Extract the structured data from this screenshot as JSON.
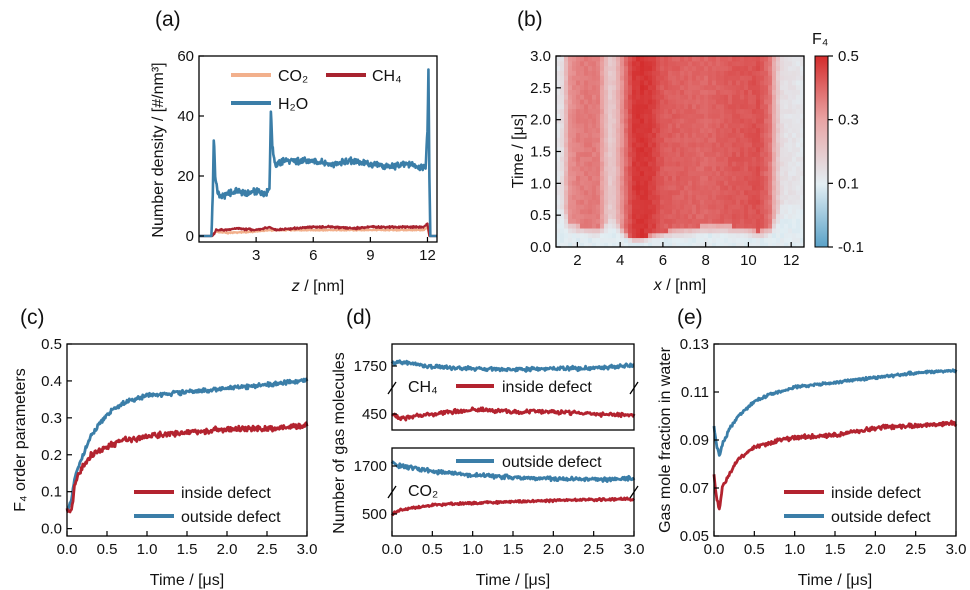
{
  "colors": {
    "h2o": "#3b7ea8",
    "ch4": "#a8232f",
    "co2": "#f2b08c",
    "inside": "#b3232f",
    "outside": "#3b7ea8"
  },
  "panels": {
    "a": {
      "label": "(a)",
      "xlabel_var": "z",
      "xlabel_unit": " / [nm]",
      "ylabel": "Number density / [#/nm³]",
      "legend": {
        "co2": "CO₂",
        "ch4": "CH₄",
        "h2o": "H₂O"
      }
    },
    "b": {
      "label": "(b)",
      "xlabel_var": "x",
      "xlabel_unit": " / [nm]",
      "ylabel": "Time / [μs]",
      "colorbar_title": "F₄"
    },
    "c": {
      "label": "(c)",
      "xlabel": "Time / [μs]",
      "ylabel": "F₄ order parameters",
      "legend": {
        "inside": "inside defect",
        "outside": "outside defect"
      }
    },
    "d": {
      "label": "(d)",
      "xlabel": "Time / [μs]",
      "ylabel": "Number of gas molecules",
      "top_gas": "CH₄",
      "bottom_gas": "CO₂",
      "legend": {
        "inside": "inside defect",
        "outside": "outside defect"
      }
    },
    "e": {
      "label": "(e)",
      "xlabel": "Time / [μs]",
      "ylabel": "Gas mole fraction in water",
      "legend": {
        "inside": "inside defect",
        "outside": "outside defect"
      }
    }
  },
  "chart_data": [
    {
      "panel": "a",
      "type": "line",
      "xticks": [
        "3",
        "6",
        "9",
        "12"
      ],
      "yticks": [
        "0",
        "20",
        "40",
        "60"
      ],
      "xlim": [
        0,
        12.5
      ],
      "ylim": [
        -2,
        60
      ],
      "series": [
        {
          "name": "H₂O",
          "x": [
            0,
            0.65,
            0.72,
            0.78,
            0.85,
            1.0,
            1.2,
            1.5,
            2.0,
            2.5,
            3.0,
            3.5,
            3.7,
            3.78,
            3.85,
            4.0,
            4.5,
            5,
            6,
            7,
            8,
            9,
            10,
            11,
            11.6,
            11.9,
            12.0,
            12.05,
            12.1,
            12.15,
            12.5
          ],
          "y": [
            0,
            0,
            12,
            34,
            20,
            14,
            13,
            14,
            15,
            14,
            15,
            14,
            16,
            42,
            30,
            24,
            25,
            25,
            25,
            24,
            25,
            24,
            23,
            24,
            23,
            23,
            35,
            55,
            20,
            0,
            0
          ]
        },
        {
          "name": "CH₄",
          "x": [
            0,
            0.7,
            0.9,
            1.5,
            2,
            3,
            3.7,
            4,
            5,
            6,
            7,
            8,
            9,
            10,
            11,
            11.8,
            12.0,
            12.1,
            12.5
          ],
          "y": [
            0,
            0,
            2,
            2,
            2.5,
            2,
            3,
            2,
            2.5,
            3,
            3,
            2.5,
            3,
            3,
            3,
            3,
            4,
            0,
            0
          ]
        },
        {
          "name": "CO₂",
          "x": [
            0,
            0.7,
            0.9,
            1.5,
            3,
            4,
            6,
            8,
            10,
            11.8,
            12.0,
            12.1,
            12.5
          ],
          "y": [
            0,
            0,
            1.5,
            1,
            1.5,
            2,
            2,
            2,
            2,
            2,
            3,
            0,
            0
          ]
        }
      ]
    },
    {
      "panel": "b",
      "type": "heatmap",
      "xticks": [
        "2",
        "4",
        "6",
        "8",
        "10",
        "12"
      ],
      "yticks": [
        "0.0",
        "0.5",
        "1.0",
        "1.5",
        "2.0",
        "2.5",
        "3.0"
      ],
      "xlim": [
        1,
        12.6
      ],
      "ylim": [
        0,
        3.0
      ],
      "colorbar_ticks": [
        "0.5",
        "0.3",
        "0.1",
        "-0.1"
      ],
      "zlim": [
        -0.1,
        0.5
      ],
      "profile_x": [
        1,
        1.3,
        1.6,
        2,
        2.5,
        3,
        3.3,
        3.6,
        4,
        4.3,
        4.6,
        5,
        5.5,
        6,
        7,
        8,
        9,
        10,
        10.5,
        11,
        11.3,
        11.6,
        12.6
      ],
      "profile_f4": [
        0.12,
        0.15,
        0.32,
        0.36,
        0.37,
        0.36,
        0.25,
        0.18,
        0.3,
        0.4,
        0.47,
        0.49,
        0.47,
        0.42,
        0.41,
        0.4,
        0.42,
        0.43,
        0.44,
        0.38,
        0.22,
        0.14,
        0.12
      ],
      "onset_time": [
        0.7,
        0.6,
        0.4,
        0.35,
        0.3,
        0.3,
        0.35,
        0.5,
        0.3,
        0.2,
        0.15,
        0.15,
        0.2,
        0.25,
        0.3,
        0.35,
        0.35,
        0.3,
        0.25,
        0.3,
        0.5,
        0.7,
        0.7
      ]
    },
    {
      "panel": "c",
      "type": "line",
      "xticks": [
        "0.0",
        "0.5",
        "1.0",
        "1.5",
        "2.0",
        "2.5",
        "3.0"
      ],
      "yticks": [
        "0.0",
        "0.1",
        "0.2",
        "0.3",
        "0.4",
        "0.5"
      ],
      "xlim": [
        0,
        3.0
      ],
      "ylim": [
        -0.02,
        0.5
      ],
      "series": [
        {
          "name": "inside defect",
          "x": [
            0,
            0.05,
            0.1,
            0.2,
            0.3,
            0.5,
            0.7,
            1.0,
            1.5,
            2.0,
            2.5,
            3.0
          ],
          "y": [
            0.05,
            0.04,
            0.12,
            0.17,
            0.2,
            0.22,
            0.24,
            0.25,
            0.26,
            0.27,
            0.27,
            0.28
          ]
        },
        {
          "name": "outside defect",
          "x": [
            0,
            0.05,
            0.1,
            0.2,
            0.3,
            0.5,
            0.7,
            1.0,
            1.5,
            2.0,
            2.5,
            3.0
          ],
          "y": [
            0.05,
            0.07,
            0.14,
            0.2,
            0.25,
            0.31,
            0.34,
            0.36,
            0.37,
            0.38,
            0.39,
            0.4
          ]
        }
      ]
    },
    {
      "panel": "d",
      "type": "line",
      "subplots": [
        {
          "gas": "CH₄",
          "yticks": [
            "450",
            "1750"
          ],
          "xlim": [
            0,
            3.0
          ],
          "series": [
            {
              "name": "outside defect",
              "x": [
                0,
                0.1,
                0.5,
                1.0,
                1.5,
                2.0,
                2.5,
                3.0
              ],
              "y": [
                1755,
                1760,
                1748,
                1745,
                1742,
                1744,
                1745,
                1752
              ]
            },
            {
              "name": "inside defect",
              "x": [
                0,
                0.1,
                0.5,
                1.0,
                1.5,
                2.0,
                2.5,
                3.0
              ],
              "y": [
                450,
                440,
                450,
                460,
                455,
                455,
                450,
                448
              ]
            }
          ]
        },
        {
          "gas": "CO₂",
          "yticks": [
            "500",
            "1700"
          ],
          "xticks": [
            "0.0",
            "0.5",
            "1.0",
            "1.5",
            "2.0",
            "2.5",
            "3.0"
          ],
          "xlim": [
            0,
            3.0
          ],
          "series": [
            {
              "name": "outside defect",
              "x": [
                0,
                0.1,
                0.5,
                1.0,
                1.5,
                2.0,
                2.5,
                3.0
              ],
              "y": [
                1705,
                1700,
                1688,
                1680,
                1675,
                1672,
                1670,
                1672
              ]
            },
            {
              "name": "inside defect",
              "x": [
                0,
                0.1,
                0.5,
                1.0,
                1.5,
                2.0,
                2.5,
                3.0
              ],
              "y": [
                500,
                520,
                545,
                555,
                562,
                568,
                572,
                575
              ]
            }
          ]
        }
      ]
    },
    {
      "panel": "e",
      "type": "line",
      "xticks": [
        "0.0",
        "0.5",
        "1.0",
        "1.5",
        "2.0",
        "2.5",
        "3.0"
      ],
      "yticks": [
        "0.05",
        "0.07",
        "0.09",
        "0.11",
        "0.13"
      ],
      "xlim": [
        0,
        3.0
      ],
      "ylim": [
        0.05,
        0.13
      ],
      "series": [
        {
          "name": "inside defect",
          "x": [
            0,
            0.03,
            0.07,
            0.1,
            0.2,
            0.3,
            0.5,
            0.7,
            1.0,
            1.5,
            2.0,
            2.5,
            3.0
          ],
          "y": [
            0.076,
            0.066,
            0.061,
            0.07,
            0.076,
            0.082,
            0.087,
            0.089,
            0.091,
            0.092,
            0.095,
            0.096,
            0.097
          ]
        },
        {
          "name": "outside defect",
          "x": [
            0,
            0.03,
            0.07,
            0.1,
            0.2,
            0.3,
            0.5,
            0.7,
            1.0,
            1.5,
            2.0,
            2.5,
            3.0
          ],
          "y": [
            0.096,
            0.088,
            0.083,
            0.088,
            0.095,
            0.1,
            0.106,
            0.109,
            0.112,
            0.114,
            0.116,
            0.118,
            0.119
          ]
        }
      ]
    }
  ]
}
